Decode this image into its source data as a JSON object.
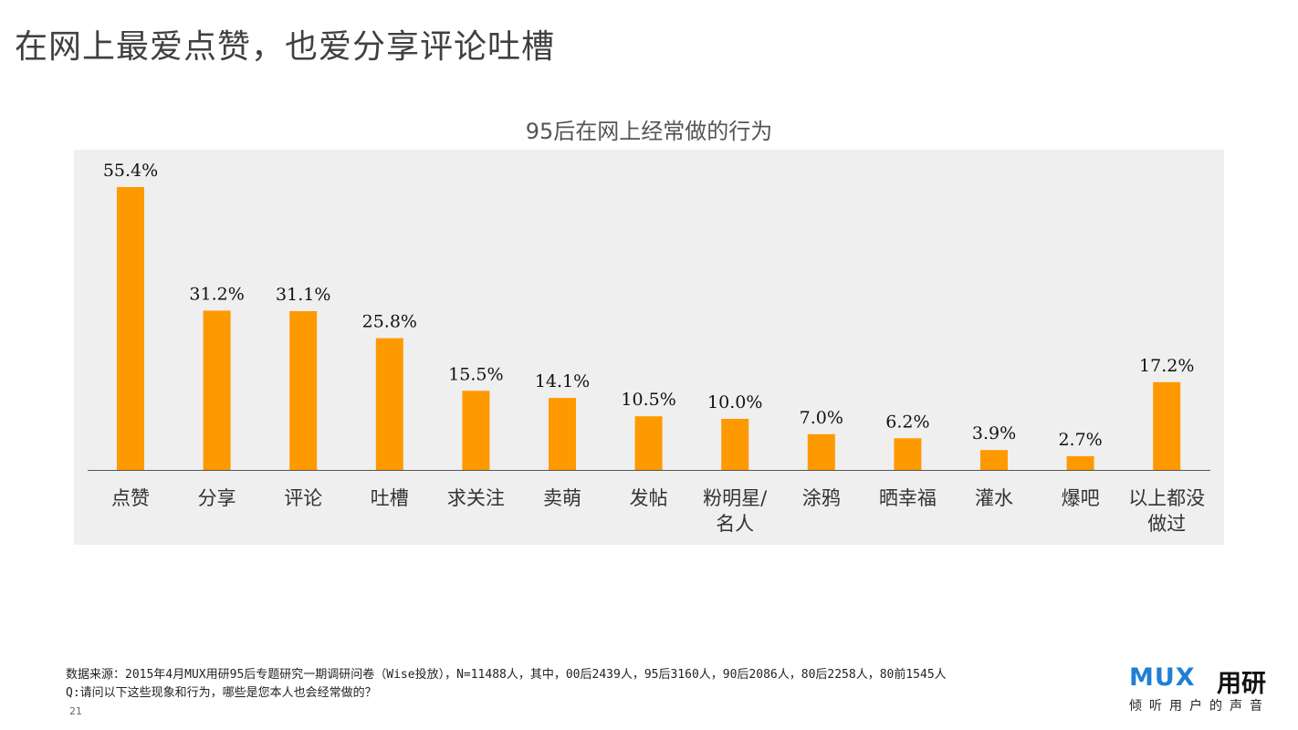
{
  "page": {
    "title": "在网上最爱点赞，也爱分享评论吐槽",
    "page_number": "21"
  },
  "chart_data": {
    "type": "bar",
    "title": "95后在网上经常做的行为",
    "categories": [
      "点赞",
      "分享",
      "评论",
      "吐槽",
      "求关注",
      "卖萌",
      "发帖",
      "粉明星/名人",
      "涂鸦",
      "晒幸福",
      "灌水",
      "爆吧",
      "以上都没做过"
    ],
    "category_lines": [
      [
        "点赞"
      ],
      [
        "分享"
      ],
      [
        "评论"
      ],
      [
        "吐槽"
      ],
      [
        "求关注"
      ],
      [
        "卖萌"
      ],
      [
        "发帖"
      ],
      [
        "粉明星/",
        "名人"
      ],
      [
        "涂鸦"
      ],
      [
        "晒幸福"
      ],
      [
        "灌水"
      ],
      [
        "爆吧"
      ],
      [
        "以上都没",
        "做过"
      ]
    ],
    "values": [
      55.4,
      31.2,
      31.1,
      25.8,
      15.5,
      14.1,
      10.5,
      10.0,
      7.0,
      6.2,
      3.9,
      2.7,
      17.2
    ],
    "value_labels": [
      "55.4%",
      "31.2%",
      "31.1%",
      "25.8%",
      "15.5%",
      "14.1%",
      "10.5%",
      "10.0%",
      "7.0%",
      "6.2%",
      "3.9%",
      "2.7%",
      "17.2%"
    ],
    "unit": "%",
    "ylim": [
      0,
      60
    ],
    "xlabel": "",
    "ylabel": "",
    "grid": false,
    "legend": "none",
    "colors": {
      "bar": "#FF9900",
      "plot_background": "#EFEFEF",
      "axis": "#555555"
    }
  },
  "footnote": {
    "source": "数据来源：2015年4月MUX用研95后专题研究一期调研问卷（Wise投放），N=11488人，其中，00后2439人，95后3160人，90后2086人，80后2258人，80前1545人",
    "question": "Q:请问以下这些现象和行为，哪些是您本人也会经常做的？"
  },
  "logo": {
    "mark": "MUX",
    "name": "用研",
    "tagline": "倾听用户的声音",
    "color": "#1F7FD4"
  }
}
